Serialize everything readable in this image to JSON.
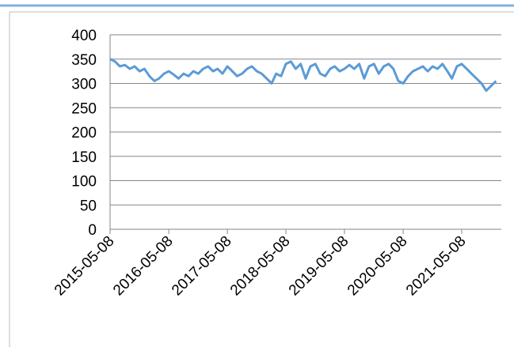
{
  "chart_data": {
    "type": "line",
    "x": [
      "2015-05-08",
      "2015-06-08",
      "2015-07-08",
      "2015-08-08",
      "2015-09-08",
      "2015-10-08",
      "2015-11-08",
      "2015-12-08",
      "2016-01-08",
      "2016-02-08",
      "2016-03-08",
      "2016-04-08",
      "2016-05-08",
      "2016-06-08",
      "2016-07-08",
      "2016-08-08",
      "2016-09-08",
      "2016-10-08",
      "2016-11-08",
      "2016-12-08",
      "2017-01-08",
      "2017-02-08",
      "2017-03-08",
      "2017-04-08",
      "2017-05-08",
      "2017-06-08",
      "2017-07-08",
      "2017-08-08",
      "2017-09-08",
      "2017-10-08",
      "2017-11-08",
      "2017-12-08",
      "2018-01-08",
      "2018-02-08",
      "2018-03-08",
      "2018-04-08",
      "2018-05-08",
      "2018-06-08",
      "2018-07-08",
      "2018-08-08",
      "2018-09-08",
      "2018-10-08",
      "2018-11-08",
      "2018-12-08",
      "2019-01-08",
      "2019-02-08",
      "2019-03-08",
      "2019-04-08",
      "2019-05-08",
      "2019-06-08",
      "2019-07-08",
      "2019-08-08",
      "2019-09-08",
      "2019-10-08",
      "2019-11-08",
      "2019-12-08",
      "2020-01-08",
      "2020-02-08",
      "2020-03-08",
      "2020-04-08",
      "2020-05-08",
      "2020-06-08",
      "2020-07-08",
      "2020-08-08",
      "2020-09-08",
      "2020-10-08",
      "2020-11-08",
      "2020-12-08",
      "2021-01-08",
      "2021-02-08",
      "2021-03-08",
      "2021-04-08",
      "2021-05-08",
      "2021-06-08",
      "2021-07-08",
      "2021-08-08",
      "2021-09-08",
      "2021-10-08",
      "2021-11-08",
      "2021-12-08"
    ],
    "series": [
      {
        "color": "#5b9bd5",
        "values": [
          350,
          345,
          335,
          338,
          330,
          335,
          325,
          330,
          315,
          305,
          310,
          320,
          325,
          318,
          310,
          320,
          315,
          325,
          320,
          330,
          335,
          325,
          330,
          320,
          335,
          325,
          315,
          320,
          330,
          335,
          325,
          320,
          310,
          300,
          320,
          315,
          340,
          345,
          330,
          340,
          310,
          335,
          340,
          320,
          315,
          330,
          335,
          325,
          330,
          338,
          330,
          340,
          310,
          335,
          340,
          320,
          335,
          340,
          330,
          305,
          300,
          315,
          325,
          330,
          335,
          325,
          335,
          330,
          340,
          325,
          310,
          335,
          340,
          330,
          320,
          310,
          300,
          285,
          295,
          305
        ]
      }
    ],
    "xlim": [
      "2015-05-08",
      "2022-01-10"
    ],
    "xticks": [
      "2015-05-08",
      "2016-05-08",
      "2017-05-08",
      "2018-05-08",
      "2019-05-08",
      "2020-05-08",
      "2021-05-08"
    ],
    "ylim": [
      0,
      400
    ],
    "yticks": [
      0,
      50,
      100,
      150,
      200,
      250,
      300,
      350,
      400
    ],
    "grid": true
  }
}
